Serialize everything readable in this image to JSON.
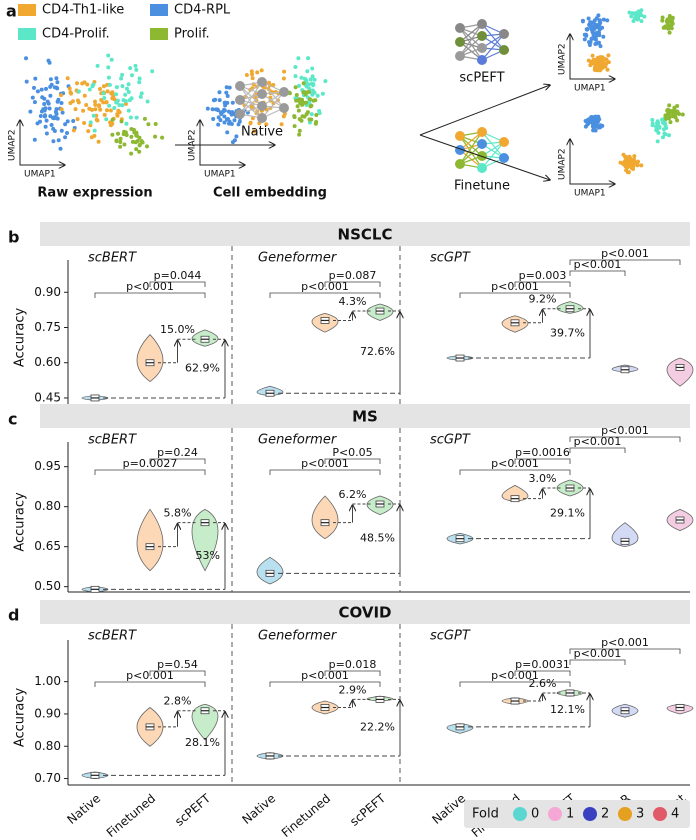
{
  "panel_a": {
    "label": "a",
    "legend": [
      {
        "name": "CD4-Th1-like",
        "color": "#f0a830"
      },
      {
        "name": "CD4-RPL",
        "color": "#4a8fe0"
      },
      {
        "name": "CD4-Prolif.",
        "color": "#5ce8c8"
      },
      {
        "name": "Prolif.",
        "color": "#8db832"
      }
    ],
    "x_label": "UMAP1",
    "y_label": "UMAP2",
    "captions": [
      "Raw expression",
      "Cell embedding"
    ],
    "methods": [
      "Native",
      "scPEFT",
      "Finetune"
    ]
  },
  "models": [
    "scBERT",
    "Geneformer",
    "scGPT"
  ],
  "categories": [
    "Native",
    "Finetuned",
    "scPEFT",
    "singleR",
    "Seurat"
  ],
  "violin_colors": [
    "#b9e0f0",
    "#fcd8b6",
    "#c7ecc9",
    "#d2daf5",
    "#f5cde3"
  ],
  "fold_legend": {
    "title": "Fold",
    "labels": [
      "0",
      "1",
      "2",
      "3",
      "4"
    ],
    "colors": [
      "#5cd6d0",
      "#f5a8d6",
      "#3a40c0",
      "#e6a020",
      "#e05a6a"
    ]
  },
  "chart_data": [
    {
      "type": "violin",
      "panel": "b",
      "title": "NSCLC",
      "ylabel": "Accuracy",
      "ylim": [
        0.42,
        1.08
      ],
      "yticks": [
        0.45,
        {
          "value": 0.6,
          "label": "0.60"
        },
        0.75,
        {
          "value": 0.9,
          "label": "0.90"
        }
      ],
      "groups": [
        {
          "values": [
            0.45,
            0.6,
            0.7
          ],
          "ranges": [
            [
              0.44,
              0.46
            ],
            [
              0.52,
              0.72
            ],
            [
              0.67,
              0.74
            ]
          ],
          "comparisons": [
            "p<0.001",
            "p=0.044"
          ],
          "gains": [
            "15.0%",
            "62.9%"
          ]
        },
        {
          "values": [
            0.47,
            0.78,
            0.82
          ],
          "ranges": [
            [
              0.46,
              0.5
            ],
            [
              0.73,
              0.81
            ],
            [
              0.78,
              0.85
            ]
          ],
          "comparisons": [
            "p<0.001",
            "p=0.087"
          ],
          "gains": [
            "4.3%",
            "72.6%"
          ]
        },
        {
          "values": [
            0.62,
            0.77,
            0.83,
            0.57,
            0.58
          ],
          "ranges": [
            [
              0.61,
              0.63
            ],
            [
              0.73,
              0.8
            ],
            [
              0.81,
              0.86
            ],
            [
              0.56,
              0.59
            ],
            [
              0.5,
              0.62
            ]
          ],
          "comparisons": [
            "p<0.001",
            "p=0.003",
            "p<0.001",
            "p<0.001"
          ],
          "gains": [
            "9.2%",
            "39.7%"
          ]
        }
      ]
    },
    {
      "type": "violin",
      "panel": "c",
      "title": "MS",
      "ylabel": "Accuracy",
      "ylim": [
        0.48,
        1.08
      ],
      "yticks": [
        {
          "value": 0.5,
          "label": "0.50"
        },
        0.65,
        {
          "value": 0.8,
          "label": "0.80"
        },
        0.95
      ],
      "groups": [
        {
          "values": [
            0.49,
            0.65,
            0.74
          ],
          "ranges": [
            [
              0.48,
              0.5
            ],
            [
              0.56,
              0.79
            ],
            [
              0.56,
              0.79
            ]
          ],
          "comparisons": [
            "p=0.0027",
            "p=0.24"
          ],
          "gains": [
            "5.8%",
            "53%"
          ]
        },
        {
          "values": [
            0.55,
            0.74,
            0.81
          ],
          "ranges": [
            [
              0.51,
              0.61
            ],
            [
              0.68,
              0.84
            ],
            [
              0.77,
              0.84
            ]
          ],
          "comparisons": [
            "p<0.001",
            "P<0.05"
          ],
          "gains": [
            "6.2%",
            "48.5%"
          ]
        },
        {
          "values": [
            0.68,
            0.83,
            0.87,
            0.67,
            0.75
          ],
          "ranges": [
            [
              0.66,
              0.7
            ],
            [
              0.82,
              0.88
            ],
            [
              0.84,
              0.9
            ],
            [
              0.65,
              0.74
            ],
            [
              0.71,
              0.79
            ]
          ],
          "comparisons": [
            "p<0.001",
            "p=0.0016",
            "p<0.001",
            "p<0.001"
          ],
          "gains": [
            "3.0%",
            "29.1%"
          ]
        }
      ]
    },
    {
      "type": "violin",
      "panel": "d",
      "title": "COVID",
      "ylabel": "Accuracy",
      "ylim": [
        0.68,
        1.16
      ],
      "yticks": [
        {
          "value": 0.7,
          "label": "0.70"
        },
        {
          "value": 0.8,
          "label": "0.80"
        },
        {
          "value": 0.9,
          "label": "0.90"
        },
        {
          "value": 1,
          "label": "1.00"
        }
      ],
      "groups": [
        {
          "values": [
            0.71,
            0.86,
            0.91
          ],
          "ranges": [
            [
              0.7,
              0.72
            ],
            [
              0.8,
              0.92
            ],
            [
              0.82,
              0.93
            ]
          ],
          "comparisons": [
            "p<0.001",
            "p=0.54"
          ],
          "gains": [
            "2.8%",
            "28.1%"
          ]
        },
        {
          "values": [
            0.77,
            0.92,
            0.945
          ],
          "ranges": [
            [
              0.76,
              0.78
            ],
            [
              0.9,
              0.94
            ],
            [
              0.94,
              0.955
            ]
          ],
          "comparisons": [
            "p<0.001",
            "p=0.018"
          ],
          "gains": [
            "2.9%",
            "22.2%"
          ]
        },
        {
          "values": [
            0.86,
            0.94,
            0.965,
            0.91,
            0.92
          ],
          "ranges": [
            [
              0.84,
              0.87
            ],
            [
              0.93,
              0.95
            ],
            [
              0.955,
              0.975
            ],
            [
              0.89,
              0.93
            ],
            [
              0.9,
              0.93
            ]
          ],
          "comparisons": [
            "p<0.001",
            "p=0.0031",
            "p<0.001",
            "p<0.001"
          ],
          "gains": [
            "2.6%",
            "12.1%"
          ]
        }
      ]
    }
  ]
}
